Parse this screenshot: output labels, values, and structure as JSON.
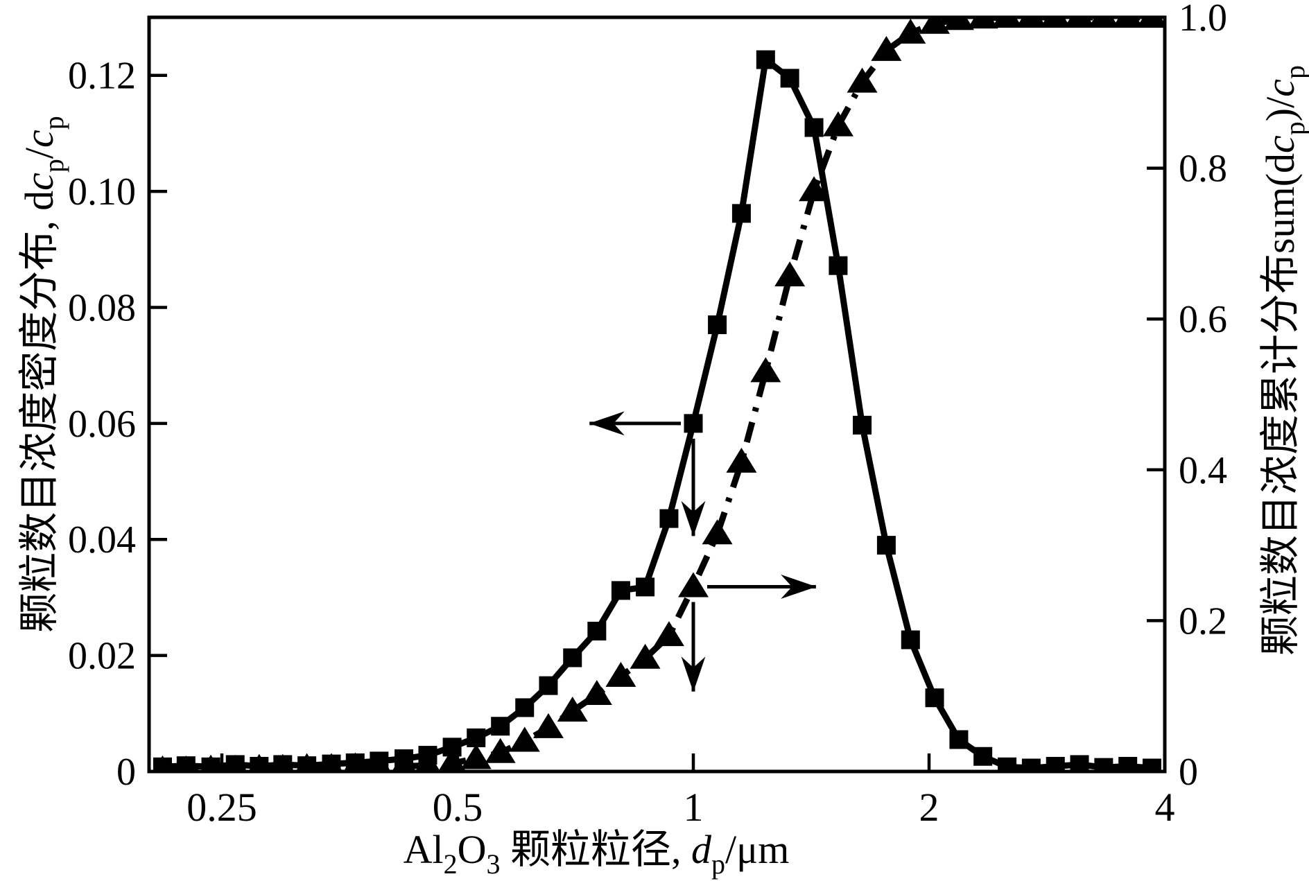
{
  "colors": {
    "ink": "#000000",
    "background": "#ffffff"
  },
  "chart_data": {
    "type": "line",
    "title": "",
    "x_axis": {
      "scale": "log",
      "min": 0.2,
      "max": 4,
      "ticks": [
        0.25,
        0.5,
        1,
        2,
        4
      ],
      "tick_labels": [
        "0.25",
        "0.5",
        "1",
        "2",
        "4"
      ],
      "title_plain": "Al2O3颗粒粒径, dp/μm",
      "title_parts": [
        {
          "t": "Al",
          "style": "normal"
        },
        {
          "t": "2",
          "style": "sub"
        },
        {
          "t": "O",
          "style": "normal"
        },
        {
          "t": "3",
          "style": "sub"
        },
        {
          "t": " 颗粒粒径, ",
          "style": "normal"
        },
        {
          "t": "d",
          "style": "italic"
        },
        {
          "t": "p",
          "style": "sub"
        },
        {
          "t": "/μm",
          "style": "normal"
        }
      ]
    },
    "y_left": {
      "min": 0,
      "max": 0.13,
      "ticks": [
        0,
        0.02,
        0.04,
        0.06,
        0.08,
        0.1,
        0.12
      ],
      "tick_labels": [
        "0",
        "0.02",
        "0.04",
        "0.06",
        "0.08",
        "0.10",
        "0.12"
      ],
      "title_plain": "颗粒数目浓度密度分布, dcp/cp",
      "title_parts": [
        {
          "t": "颗粒数目浓度密度分布, ",
          "style": "normal"
        },
        {
          "t": "d",
          "style": "normal"
        },
        {
          "t": "c",
          "style": "italic"
        },
        {
          "t": "p",
          "style": "sub"
        },
        {
          "t": "/",
          "style": "normal"
        },
        {
          "t": "c",
          "style": "italic"
        },
        {
          "t": "p",
          "style": "sub"
        }
      ]
    },
    "y_right": {
      "min": 0,
      "max": 1.0,
      "ticks": [
        0,
        0.2,
        0.4,
        0.6,
        0.8,
        1.0
      ],
      "tick_labels": [
        "0",
        "0.2",
        "0.4",
        "0.6",
        "0.8",
        "1.0"
      ],
      "title_plain": "颗粒数目浓度累计分布sum(dcp)/cp",
      "title_parts": [
        {
          "t": "颗粒数目浓度累计分布",
          "style": "normal"
        },
        {
          "t": "sum(",
          "style": "normal"
        },
        {
          "t": "d",
          "style": "normal"
        },
        {
          "t": "c",
          "style": "italic"
        },
        {
          "t": "p",
          "style": "sub"
        },
        {
          "t": ")/",
          "style": "normal"
        },
        {
          "t": "c",
          "style": "italic"
        },
        {
          "t": "p",
          "style": "sub"
        }
      ]
    },
    "x": [
      0.21,
      0.225,
      0.242,
      0.26,
      0.279,
      0.299,
      0.321,
      0.345,
      0.37,
      0.397,
      0.427,
      0.458,
      0.492,
      0.528,
      0.567,
      0.609,
      0.653,
      0.701,
      0.753,
      0.808,
      0.868,
      0.931,
      1.0,
      1.073,
      1.152,
      1.237,
      1.328,
      1.426,
      1.531,
      1.643,
      1.764,
      1.894,
      2.033,
      2.183,
      2.343,
      2.516,
      2.701,
      2.9,
      3.113,
      3.342,
      3.588,
      3.852
    ],
    "series": [
      {
        "name": "number-density-distribution",
        "axis": "left",
        "marker": "square",
        "line": "solid",
        "values": [
          0.0008,
          0.001,
          0.0008,
          0.0012,
          0.0009,
          0.0012,
          0.001,
          0.0013,
          0.0015,
          0.0018,
          0.0022,
          0.0028,
          0.0042,
          0.0058,
          0.0078,
          0.011,
          0.0148,
          0.0196,
          0.0242,
          0.0312,
          0.0318,
          0.0436,
          0.06,
          0.077,
          0.0962,
          0.1227,
          0.1195,
          0.111,
          0.0872,
          0.0597,
          0.039,
          0.0227,
          0.0127,
          0.0055,
          0.0026,
          0.0008,
          0.0006,
          0.0009,
          0.0012,
          0.0007,
          0.0009,
          0.0006
        ]
      },
      {
        "name": "cumulative-distribution",
        "axis": "right",
        "marker": "triangle",
        "line": "dashdot",
        "values": [
          0.002,
          0.002,
          0.003,
          0.003,
          0.004,
          0.004,
          0.005,
          0.005,
          0.006,
          0.006,
          0.007,
          0.008,
          0.011,
          0.017,
          0.025,
          0.04,
          0.058,
          0.08,
          0.102,
          0.126,
          0.15,
          0.18,
          0.245,
          0.315,
          0.41,
          0.53,
          0.657,
          0.77,
          0.856,
          0.914,
          0.956,
          0.979,
          0.992,
          0.997,
          0.999,
          1.0,
          1.0,
          1.0,
          1.0,
          1.0,
          1.0,
          1.0
        ]
      }
    ],
    "annotations": {
      "left_series_pointer": {
        "at_x": 1.0,
        "at_y": 0.06,
        "horiz_end_x": 0.737,
        "vert_end_y": 0.0406,
        "direction": "left"
      },
      "right_series_pointer": {
        "at_x": 1.0,
        "at_y": 0.245,
        "horiz_end_x": 1.434,
        "vert_end_y": 0.106,
        "direction": "right"
      }
    },
    "layout_hints": {
      "grid": false,
      "legend": "none",
      "ink_color": "#000000"
    }
  }
}
